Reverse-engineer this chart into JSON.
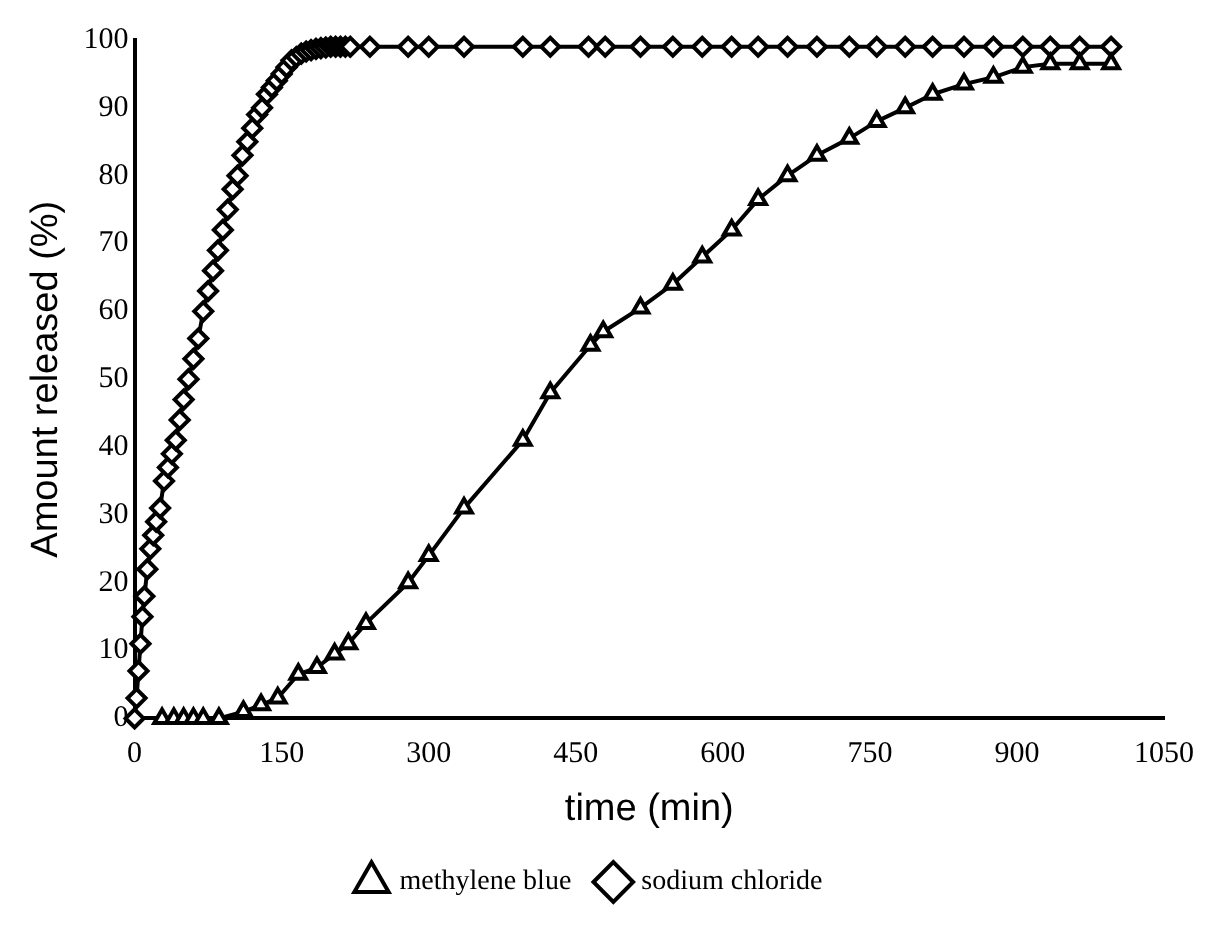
{
  "chart_data": {
    "type": "line",
    "xlabel": "time (min)",
    "ylabel": "Amount released (%)",
    "xlim": [
      0,
      1050
    ],
    "xticks": [
      0,
      150,
      300,
      450,
      600,
      750,
      900,
      1050
    ],
    "ylim": [
      0,
      100
    ],
    "yticks": [
      0,
      10,
      20,
      30,
      40,
      50,
      60,
      70,
      80,
      90,
      100
    ],
    "grid": false,
    "legend": "bottom",
    "line_style": "solid",
    "series": [
      {
        "name": "methylene blue",
        "color": "#000000",
        "marker": "triangle",
        "x": [
          28,
          40,
          50,
          60,
          70,
          86,
          111,
          129,
          146,
          167,
          186,
          204,
          218,
          236,
          279,
          300,
          336,
          396,
          424,
          465,
          478,
          516,
          549,
          579,
          609,
          636,
          666,
          696,
          729,
          757,
          786,
          814,
          846,
          876,
          906,
          934,
          964,
          996
        ],
        "values": [
          0,
          0,
          0,
          0,
          0,
          0,
          1,
          2,
          3,
          6.5,
          7.5,
          9.5,
          11,
          14,
          20,
          24,
          31,
          41,
          48,
          55,
          57,
          60.5,
          64,
          68,
          72,
          76.5,
          80,
          83,
          85.5,
          88,
          90,
          92,
          93.5,
          94.5,
          96,
          96.5,
          96.5,
          96.5
        ]
      },
      {
        "name": "sodium chloride",
        "color": "#000000",
        "marker": "diamond",
        "x": [
          0,
          2,
          4,
          6,
          8,
          10,
          13,
          16,
          19,
          22,
          26,
          30,
          34,
          38,
          42,
          46,
          50,
          55,
          60,
          65,
          70,
          75,
          80,
          85,
          90,
          95,
          100,
          105,
          110,
          115,
          120,
          125,
          130,
          135,
          140,
          145,
          150,
          155,
          160,
          165,
          170,
          175,
          180,
          185,
          190,
          195,
          200,
          205,
          210,
          215,
          220,
          240,
          279,
          300,
          336,
          396,
          424,
          463,
          480,
          516,
          549,
          579,
          609,
          636,
          666,
          696,
          729,
          757,
          786,
          814,
          846,
          876,
          906,
          934,
          964,
          996
        ],
        "values": [
          0,
          3,
          7,
          11,
          15,
          18,
          22,
          25,
          27,
          29,
          31,
          35,
          37,
          39,
          41,
          44,
          47,
          50,
          53,
          56,
          60,
          63,
          66,
          69,
          72,
          75,
          78,
          80,
          83,
          85,
          87,
          89,
          90,
          92,
          93,
          94,
          95,
          96,
          97,
          97.5,
          98,
          98.3,
          98.5,
          98.7,
          98.8,
          98.9,
          99,
          99,
          99,
          99,
          99,
          99,
          99,
          99,
          99,
          99,
          99,
          99,
          99,
          99,
          99,
          99,
          99,
          99,
          99,
          99,
          99,
          99,
          99,
          99,
          99,
          99,
          99,
          99,
          99,
          99
        ]
      }
    ]
  }
}
